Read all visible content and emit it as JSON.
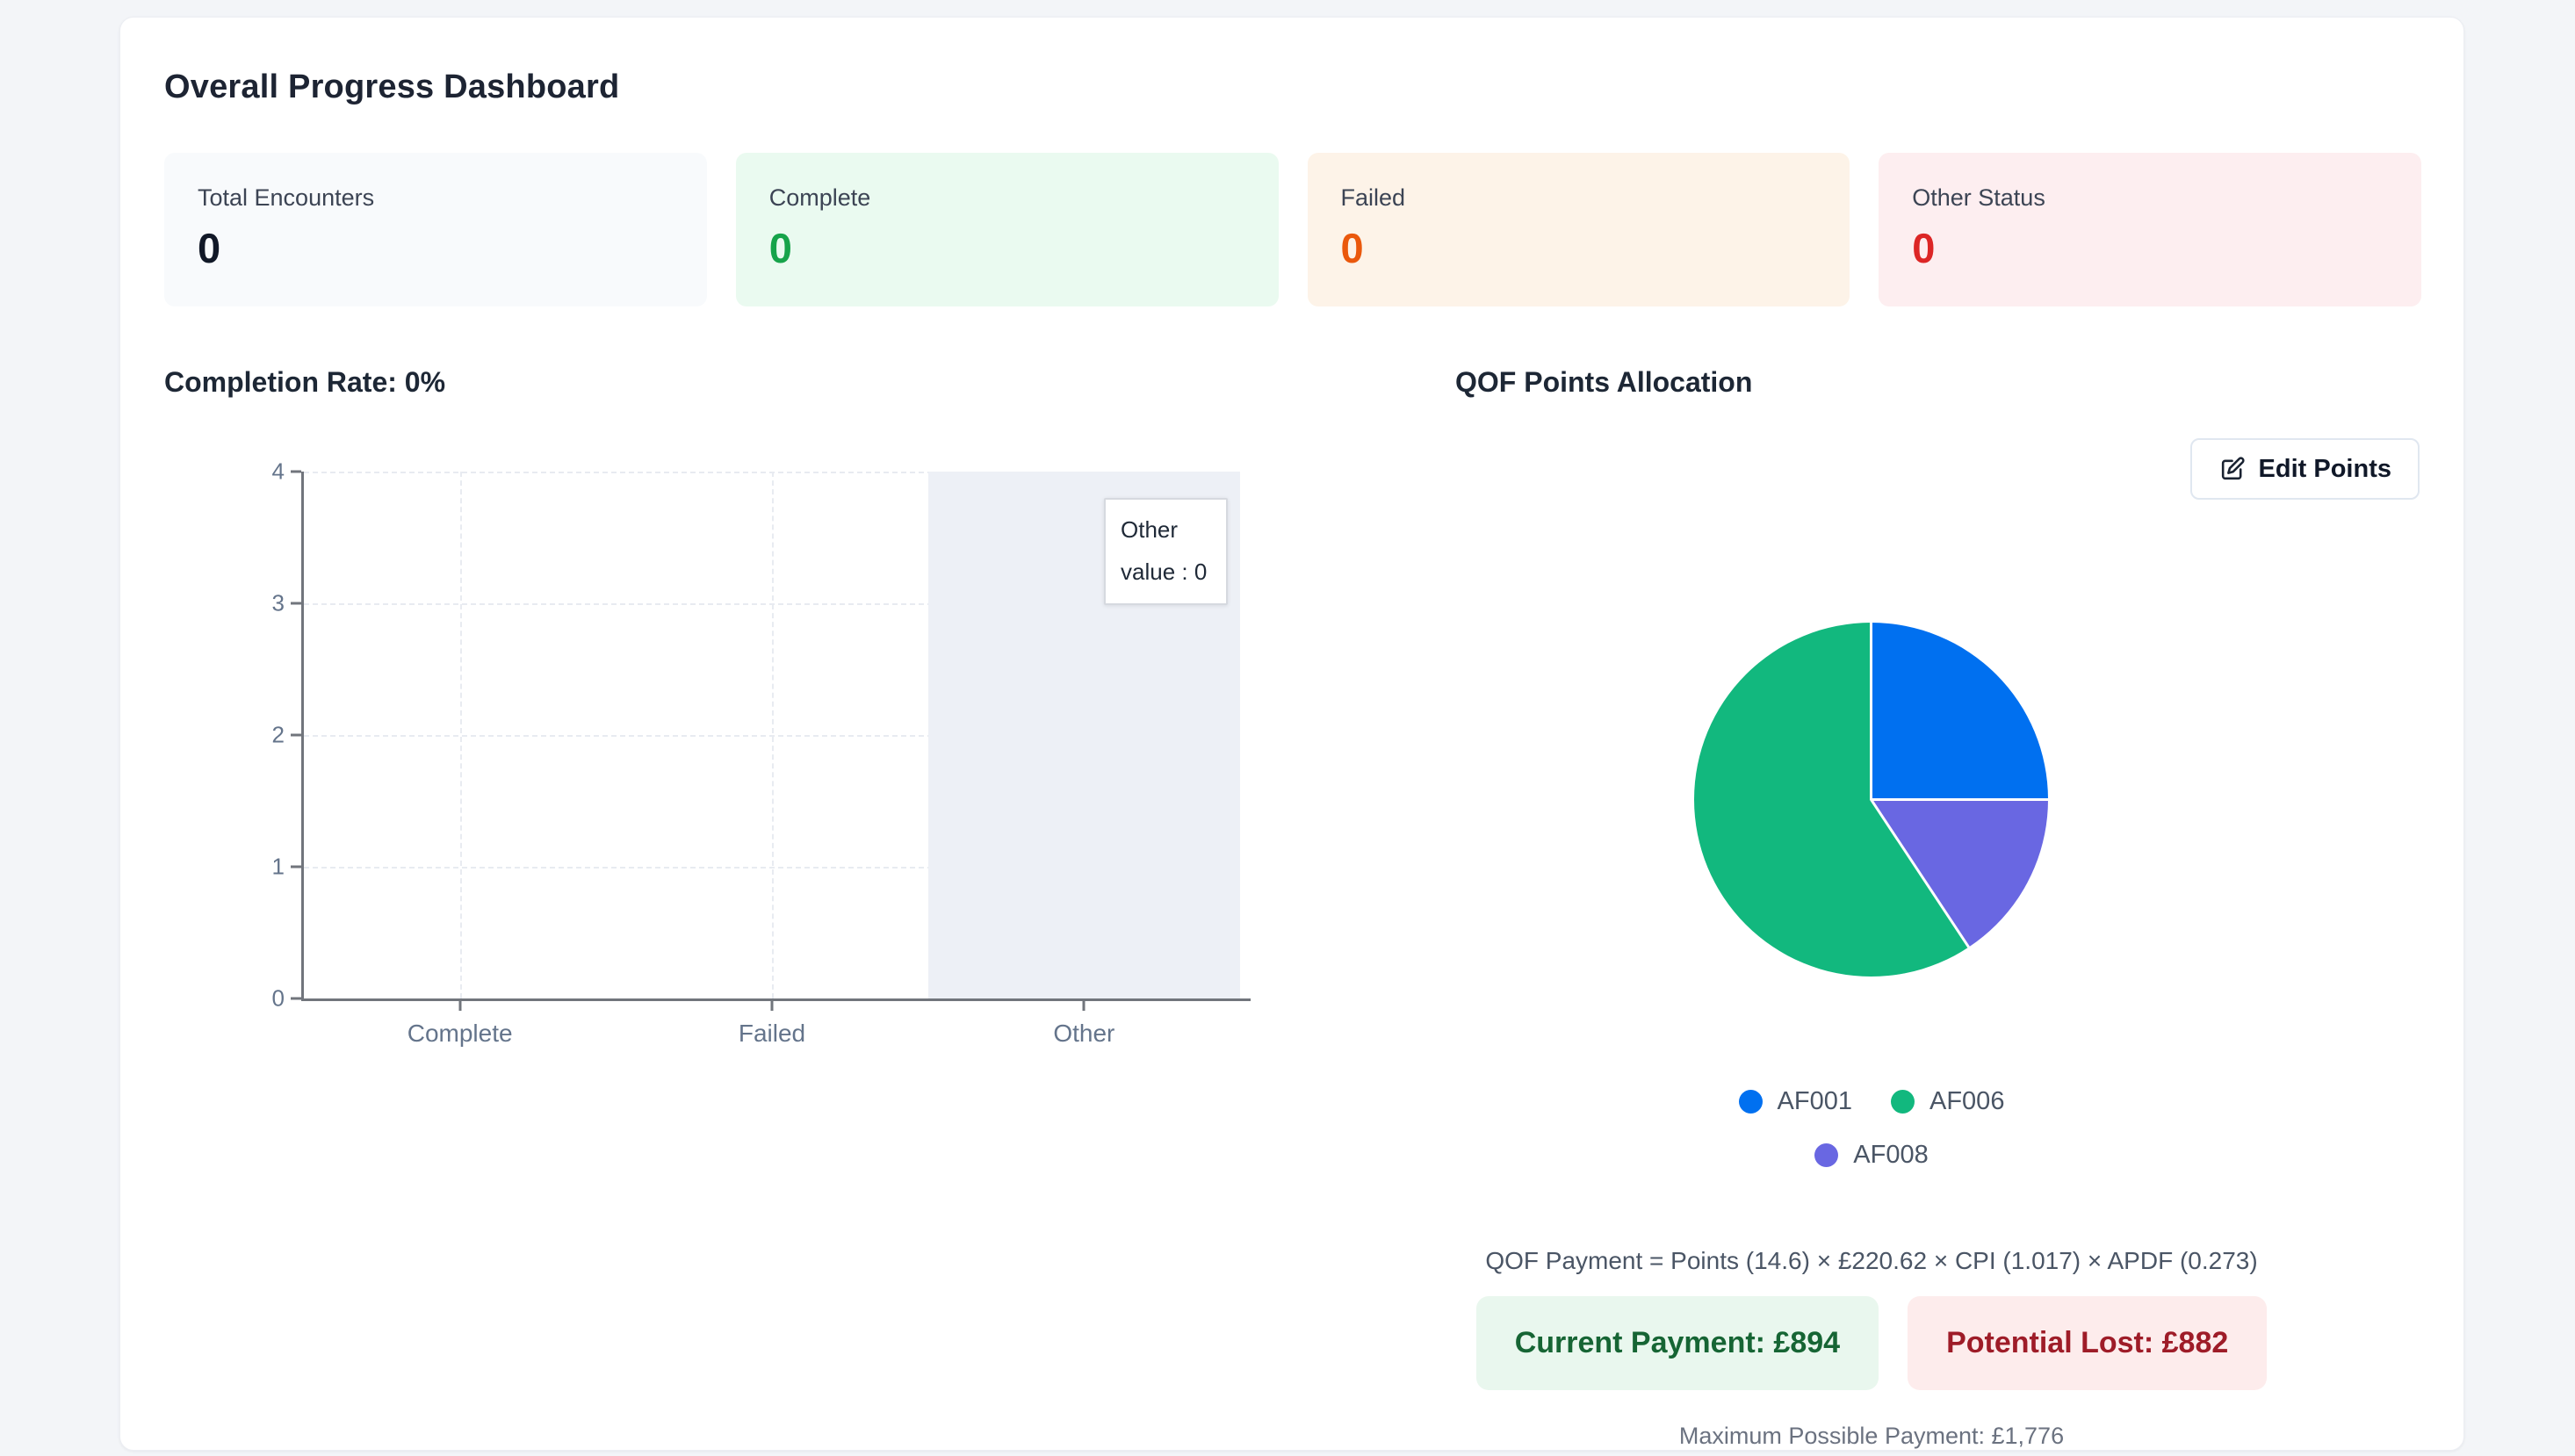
{
  "page": {
    "title": "Overall Progress Dashboard"
  },
  "stats": [
    {
      "label": "Total Encounters",
      "value": "0",
      "bg": "#f8fafc",
      "value_color": "#111827"
    },
    {
      "label": "Complete",
      "value": "0",
      "bg": "#eafaf0",
      "value_color": "#16a34a"
    },
    {
      "label": "Failed",
      "value": "0",
      "bg": "#fdf3e8",
      "value_color": "#ea580c"
    },
    {
      "label": "Other Status",
      "value": "0",
      "bg": "#fdeef0",
      "value_color": "#dc2626"
    }
  ],
  "completion_section": {
    "heading": "Completion Rate: 0%"
  },
  "qof_section": {
    "heading": "QOF Points Allocation",
    "edit_button_label": "Edit Points",
    "edit_icon": "pencil-square-icon",
    "formula": "QOF Payment = Points (14.6) × £220.62 × CPI (1.017) × APDF (0.273)",
    "current_payment": "Current Payment: £894",
    "potential_lost": "Potential Lost: £882",
    "max_payment": "Maximum Possible Payment: £1,776"
  },
  "chart_data": [
    {
      "type": "bar",
      "title": "Completion Rate: 0%",
      "categories": [
        "Complete",
        "Failed",
        "Other"
      ],
      "values": [
        0,
        0,
        0
      ],
      "ylim": [
        0,
        4
      ],
      "yticks": [
        0,
        1,
        2,
        3,
        4
      ],
      "grid": "dashed-horizontal-and-vertical",
      "highlighted_category": "Other",
      "highlight_color": "#edf0f6",
      "tooltip": {
        "title": "Other",
        "text": "value : 0"
      }
    },
    {
      "type": "pie",
      "title": "QOF Points Allocation",
      "slices": [
        {
          "label": "AF001",
          "percent": 25.0,
          "color": "#0070f0"
        },
        {
          "label": "AF008",
          "percent": 15.7,
          "color": "#6967e2"
        },
        {
          "label": "AF006",
          "percent": 59.3,
          "color": "#12b87e"
        }
      ],
      "legend_order": [
        "AF001",
        "AF006",
        "AF008"
      ],
      "legend_position": "bottom"
    }
  ]
}
